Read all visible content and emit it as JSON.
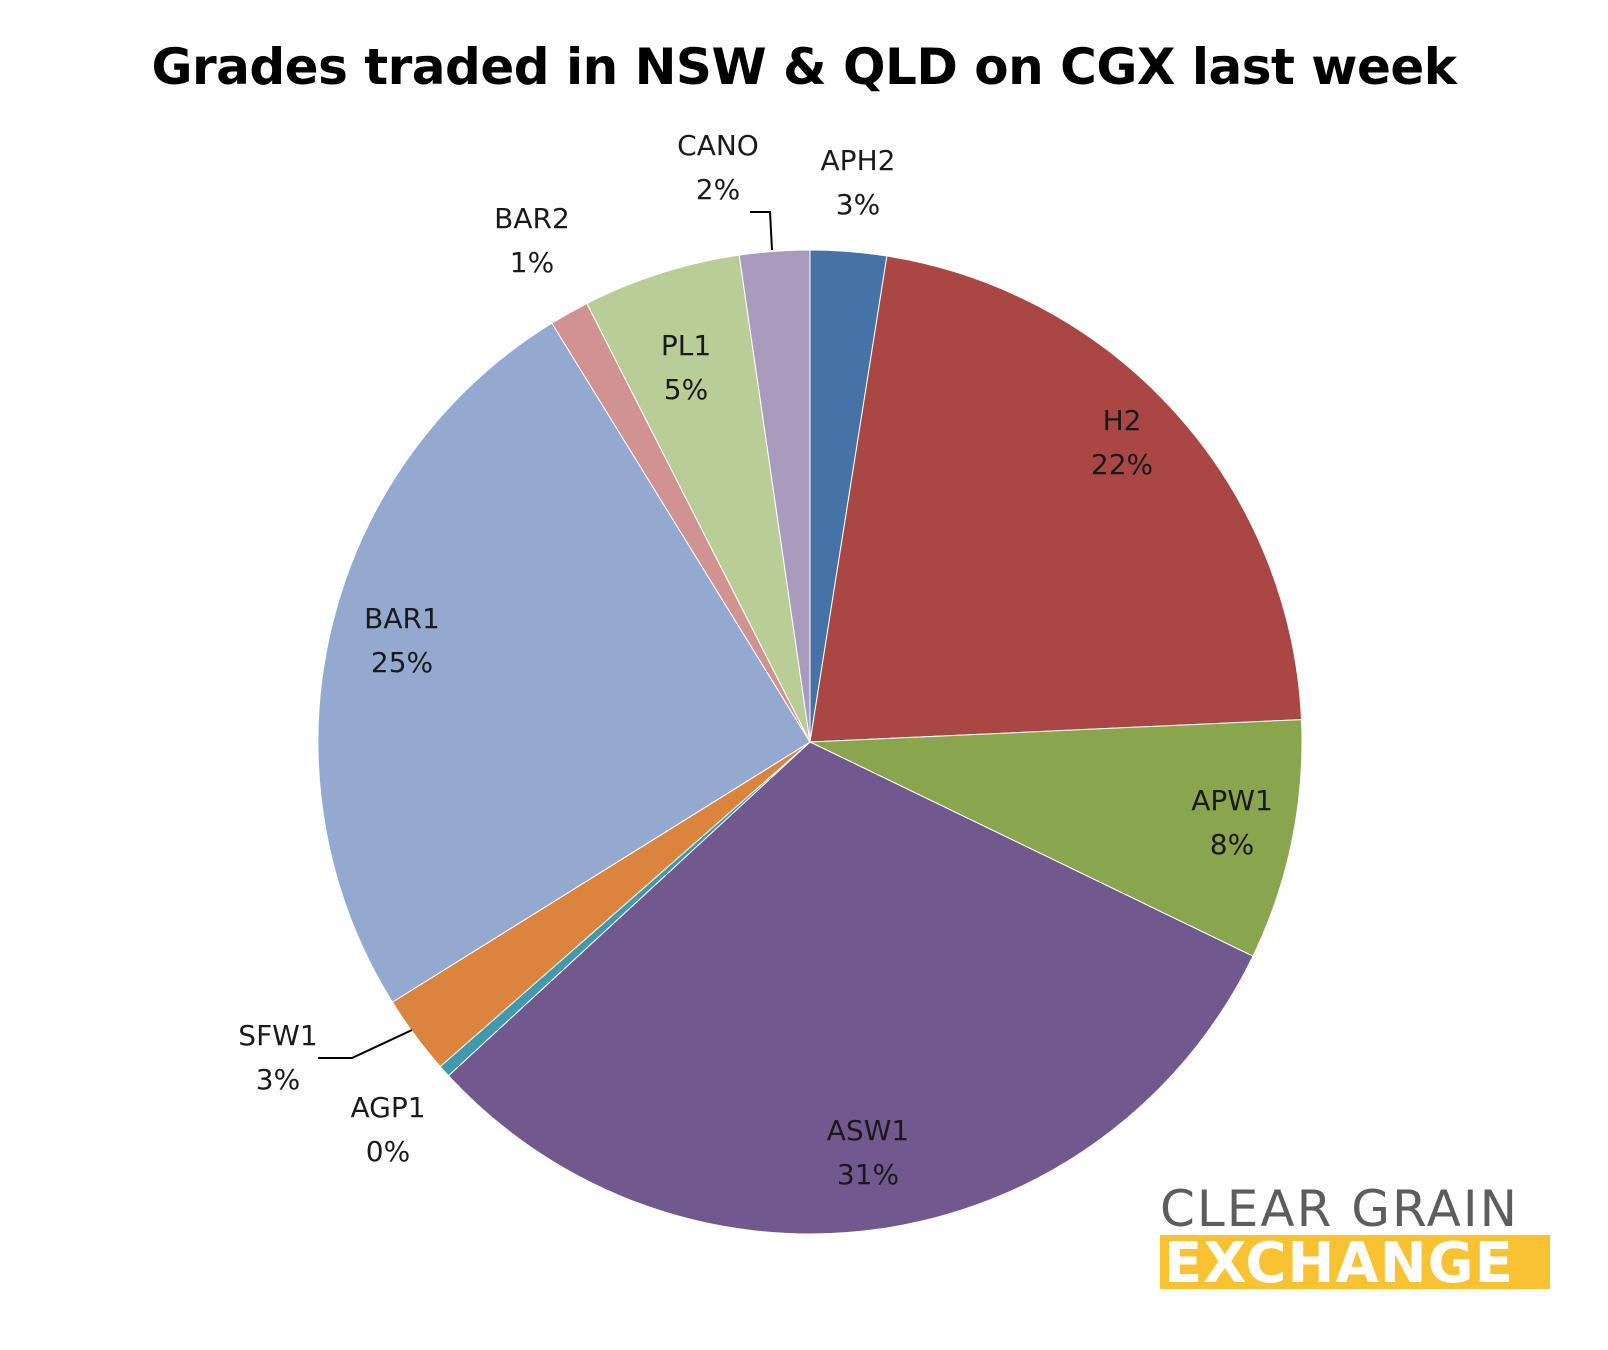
{
  "chart_data": {
    "type": "pie",
    "title": "Grades traded in NSW & QLD on CGX last week",
    "slices": [
      {
        "label": "APH2",
        "value_label": "3%",
        "value": 2.5,
        "color": "#4572a7"
      },
      {
        "label": "H2",
        "value_label": "22%",
        "value": 21.8,
        "color": "#aa4643"
      },
      {
        "label": "APW1",
        "value_label": "8%",
        "value": 7.9,
        "color": "#89a54e"
      },
      {
        "label": "ASW1",
        "value_label": "31%",
        "value": 31.0,
        "color": "#71588f"
      },
      {
        "label": "AGP1",
        "value_label": "0%",
        "value": 0.4,
        "color": "#4198af"
      },
      {
        "label": "SFW1",
        "value_label": "3%",
        "value": 2.6,
        "color": "#db843d"
      },
      {
        "label": "BAR1",
        "value_label": "25%",
        "value": 25.1,
        "color": "#93a9cf"
      },
      {
        "label": "BAR2",
        "value_label": "1%",
        "value": 1.3,
        "color": "#d19392"
      },
      {
        "label": "PL1",
        "value_label": "5%",
        "value": 5.2,
        "color": "#b9cd96"
      },
      {
        "label": "CANO",
        "value_label": "2%",
        "value": 2.3,
        "color": "#a99bbd"
      }
    ]
  },
  "logo": {
    "line1": "CLEAR GRAIN",
    "line2": "EXCHANGE"
  }
}
